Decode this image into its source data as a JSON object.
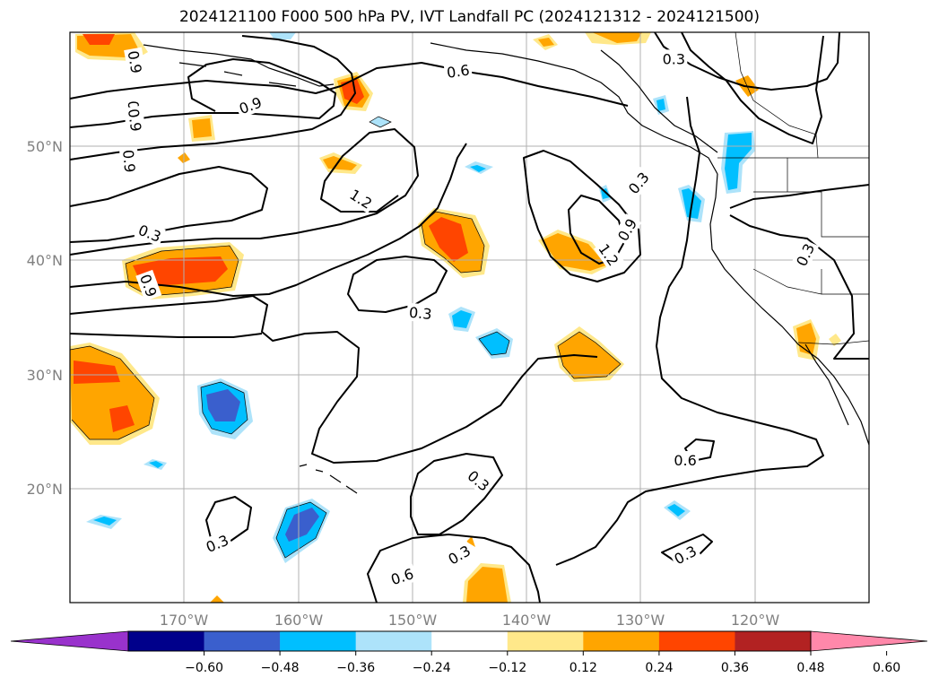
{
  "title": "2024121100 F000 500 hPa PV, IVT Landfall PC (2024121312 - 2024121500)",
  "chart_data": {
    "type": "map",
    "lon_range": [
      -180,
      -110
    ],
    "lat_range": [
      10,
      60
    ],
    "grid": true,
    "x_ticks": [
      "170°W",
      "160°W",
      "150°W",
      "140°W",
      "130°W",
      "120°W"
    ],
    "y_ticks": [
      "50°N",
      "40°N",
      "30°N",
      "20°N"
    ],
    "contour_labels": [
      {
        "text": "0.6",
        "lon": -146,
        "lat": 56.6,
        "rot": 8
      },
      {
        "text": "0.9",
        "lon": -174.3,
        "lat": 57.4,
        "rot": -80
      },
      {
        "text": "0.9",
        "lon": -174.4,
        "lat": 53,
        "rot": -88
      },
      {
        "text": "0.9",
        "lon": -174.3,
        "lat": 52.3,
        "rot": -82
      },
      {
        "text": "0.9",
        "lon": -164.2,
        "lat": 53.6,
        "rot": 20
      },
      {
        "text": "0.9",
        "lon": -174.8,
        "lat": 48.7,
        "rot": -85
      },
      {
        "text": "0.3",
        "lon": -173,
        "lat": 42.4,
        "rot": -22
      },
      {
        "text": "0.9",
        "lon": -173.1,
        "lat": 37.8,
        "rot": -70
      },
      {
        "text": "1.2",
        "lon": -154.5,
        "lat": 45.4,
        "rot": -32
      },
      {
        "text": "0.3",
        "lon": -149.3,
        "lat": 35.4,
        "rot": -5
      },
      {
        "text": "0.3",
        "lon": -130.2,
        "lat": 46.8,
        "rot": 50
      },
      {
        "text": "0.9",
        "lon": -131.2,
        "lat": 42.7,
        "rot": 60
      },
      {
        "text": "1.2",
        "lon": -132.8,
        "lat": 40.5,
        "rot": -55
      },
      {
        "text": "0.3",
        "lon": -127.1,
        "lat": 57.7,
        "rot": 0
      },
      {
        "text": "0.3",
        "lon": -115.6,
        "lat": 40.5,
        "rot": 65
      },
      {
        "text": "0.6",
        "lon": -126.1,
        "lat": 22.5,
        "rot": 0
      },
      {
        "text": "0.3",
        "lon": -144.2,
        "lat": 20.7,
        "rot": -40
      },
      {
        "text": "0.3",
        "lon": -167.1,
        "lat": 15.2,
        "rot": 22
      },
      {
        "text": "0.3",
        "lon": -145.9,
        "lat": 14.2,
        "rot": 30
      },
      {
        "text": "0.6",
        "lon": -150.9,
        "lat": 12.3,
        "rot": 18
      },
      {
        "text": "0.3",
        "lon": -126.1,
        "lat": 14.2,
        "rot": 28
      }
    ],
    "colorbar": {
      "ticks": [
        "−0.60",
        "−0.48",
        "−0.36",
        "−0.24",
        "−0.12",
        "0.12",
        "0.24",
        "0.36",
        "0.48",
        "0.60"
      ],
      "colors": [
        "#9932CC",
        "#00008B",
        "#3A5FCD",
        "#00BFFF",
        "#ADE3FA",
        "#FFFFFF",
        "#FFE88A",
        "#FFA500",
        "#FF4500",
        "#B22222",
        "#FF88AA"
      ]
    }
  }
}
